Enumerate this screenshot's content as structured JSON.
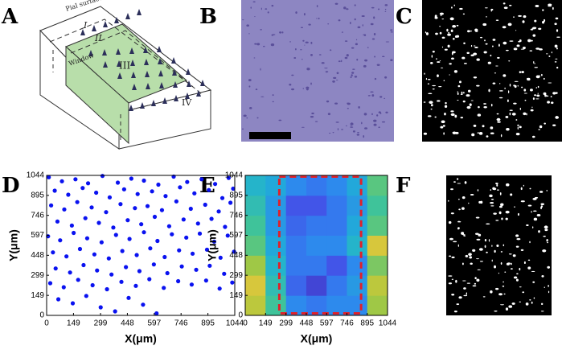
{
  "panels": {
    "labels": [
      "A",
      "B",
      "C",
      "D",
      "E",
      "F"
    ],
    "diagram": {
      "surface": "Pial surface",
      "layers": [
        "I",
        "II",
        "III",
        "IV"
      ],
      "window": "Window"
    }
  },
  "chart_data": [
    {
      "type": "scatter",
      "xlabel": "X(μm)",
      "ylabel": "Y(μm)",
      "color": "#0a12f0",
      "xlim": [
        0,
        1044
      ],
      "ylim": [
        0,
        1044
      ],
      "xticks": [
        0,
        149,
        299,
        448,
        597,
        746,
        895,
        1044
      ],
      "yticks": [
        0,
        149,
        299,
        448,
        597,
        746,
        895,
        1044
      ],
      "x": [
        12,
        85,
        160,
        230,
        310,
        395,
        470,
        540,
        620,
        705,
        780,
        860,
        935,
        1010,
        45,
        120,
        200,
        275,
        350,
        430,
        505,
        585,
        660,
        740,
        820,
        900,
        975,
        1035,
        25,
        98,
        170,
        250,
        330,
        410,
        490,
        560,
        640,
        720,
        800,
        880,
        955,
        1020,
        60,
        140,
        215,
        290,
        370,
        450,
        525,
        600,
        680,
        760,
        840,
        915,
        990,
        8,
        75,
        150,
        225,
        305,
        385,
        460,
        540,
        615,
        695,
        775,
        850,
        930,
        1005,
        35,
        110,
        185,
        265,
        345,
        420,
        500,
        575,
        655,
        735,
        810,
        890,
        965,
        1040,
        50,
        130,
        205,
        280,
        360,
        440,
        515,
        595,
        670,
        750,
        830,
        905,
        985,
        20,
        95,
        175,
        255,
        335,
        415,
        495,
        570,
        650,
        730,
        805,
        885,
        960,
        1030,
        65,
        145,
        220,
        300,
        380,
        455,
        535,
        610
      ],
      "y": [
        1030,
        1000,
        1015,
        985,
        1040,
        990,
        1020,
        1005,
        975,
        1035,
        995,
        1015,
        980,
        1025,
        930,
        900,
        950,
        915,
        880,
        940,
        905,
        925,
        890,
        955,
        910,
        935,
        875,
        945,
        820,
        790,
        845,
        805,
        770,
        830,
        800,
        815,
        785,
        850,
        795,
        825,
        775,
        840,
        700,
        670,
        725,
        690,
        655,
        710,
        680,
        735,
        665,
        715,
        685,
        720,
        660,
        590,
        560,
        615,
        575,
        545,
        600,
        570,
        620,
        555,
        605,
        580,
        610,
        550,
        595,
        470,
        440,
        495,
        455,
        425,
        480,
        450,
        500,
        435,
        485,
        460,
        490,
        430,
        475,
        350,
        320,
        375,
        335,
        305,
        360,
        330,
        380,
        315,
        365,
        340,
        370,
        310,
        240,
        210,
        265,
        225,
        195,
        250,
        220,
        270,
        205,
        255,
        230,
        260,
        200,
        245,
        120,
        90,
        145,
        60,
        30,
        130,
        80,
        15
      ]
    },
    {
      "type": "heatmap",
      "xlabel": "X(μm)",
      "ylabel": "Y(μm)",
      "xlim": [
        0,
        1044
      ],
      "ylim": [
        0,
        1044
      ],
      "xticks": [
        0,
        149,
        299,
        448,
        597,
        746,
        895,
        1044
      ],
      "yticks": [
        0,
        149,
        299,
        448,
        597,
        746,
        895,
        1044
      ],
      "colorscale": [
        "#3e26a8",
        "#4352e8",
        "#2f86f0",
        "#1fb1d4",
        "#45c690",
        "#a9c83e",
        "#f6c63b",
        "#f9ee1a"
      ],
      "z": [
        [
          0.75,
          0.55,
          0.3,
          0.25,
          0.3,
          0.3,
          0.7
        ],
        [
          0.8,
          0.5,
          0.2,
          0.1,
          0.25,
          0.35,
          0.75
        ],
        [
          0.7,
          0.45,
          0.25,
          0.25,
          0.15,
          0.3,
          0.65
        ],
        [
          0.6,
          0.4,
          0.25,
          0.3,
          0.3,
          0.45,
          0.8
        ],
        [
          0.55,
          0.35,
          0.2,
          0.25,
          0.25,
          0.4,
          0.6
        ],
        [
          0.5,
          0.35,
          0.15,
          0.15,
          0.25,
          0.35,
          0.55
        ],
        [
          0.45,
          0.4,
          0.3,
          0.25,
          0.3,
          0.4,
          0.6
        ]
      ],
      "window": {
        "x": [
          250,
          850
        ],
        "y": [
          15,
          1044
        ],
        "color": "#e0202a"
      }
    }
  ]
}
